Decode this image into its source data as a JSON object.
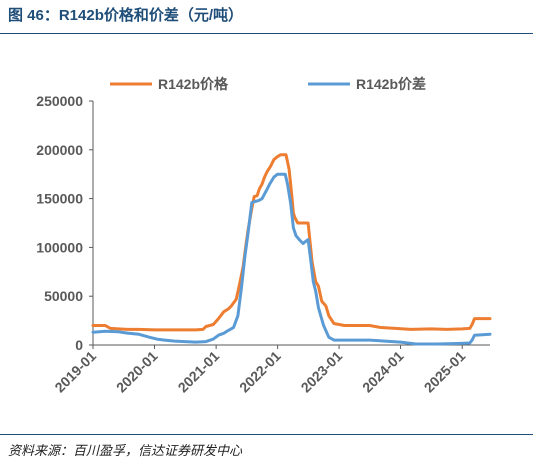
{
  "figure": {
    "title": "图 46：R142b价格和价差（元/吨）",
    "source": "资料来源：百川盈孚，信达证券研发中心"
  },
  "colors": {
    "price": "#ed7d31",
    "spread": "#5b9bd5",
    "header": "#1f4e79",
    "axis": "#595959",
    "tick_label": "#595959"
  },
  "chart_data": {
    "type": "line",
    "x_type": "date",
    "xlim": [
      "2019-01-01",
      "2025-06-15"
    ],
    "ylim": [
      0,
      250000
    ],
    "y_ticks": [
      0,
      50000,
      100000,
      150000,
      200000,
      250000
    ],
    "y_tick_labels": [
      "0",
      "50000",
      "100000",
      "150000",
      "200000",
      "250000"
    ],
    "x_ticks": [
      "2019-01-01",
      "2020-01-01",
      "2021-01-01",
      "2022-01-01",
      "2023-01-01",
      "2024-01-01",
      "2025-01-01"
    ],
    "x_tick_labels": [
      "2019-01",
      "2020-01",
      "2021-01",
      "2022-01",
      "2023-01",
      "2024-01",
      "2025-01"
    ],
    "grid": false,
    "legend_position": "top",
    "series": [
      {
        "name": "R142b价格",
        "color_key": "price",
        "points": [
          [
            "2019-01-01",
            20000
          ],
          [
            "2019-03-15",
            20000
          ],
          [
            "2019-04-15",
            17000
          ],
          [
            "2019-06-01",
            16500
          ],
          [
            "2019-08-01",
            16000
          ],
          [
            "2019-10-01",
            16000
          ],
          [
            "2020-01-01",
            15500
          ],
          [
            "2020-06-01",
            15500
          ],
          [
            "2020-09-01",
            15500
          ],
          [
            "2020-10-15",
            16000
          ],
          [
            "2020-11-01",
            19000
          ],
          [
            "2020-12-15",
            21000
          ],
          [
            "2021-01-15",
            27000
          ],
          [
            "2021-02-15",
            34000
          ],
          [
            "2021-03-15",
            37000
          ],
          [
            "2021-04-01",
            40000
          ],
          [
            "2021-05-01",
            47000
          ],
          [
            "2021-05-20",
            62000
          ],
          [
            "2021-06-10",
            80000
          ],
          [
            "2021-06-25",
            100000
          ],
          [
            "2021-07-10",
            118000
          ],
          [
            "2021-08-01",
            140000
          ],
          [
            "2021-08-15",
            152000
          ],
          [
            "2021-09-01",
            153000
          ],
          [
            "2021-09-15",
            160000
          ],
          [
            "2021-10-01",
            165000
          ],
          [
            "2021-10-15",
            172000
          ],
          [
            "2021-11-01",
            178000
          ],
          [
            "2021-11-20",
            183000
          ],
          [
            "2021-12-10",
            190000
          ],
          [
            "2022-01-01",
            193000
          ],
          [
            "2022-01-20",
            195000
          ],
          [
            "2022-02-20",
            195000
          ],
          [
            "2022-03-10",
            180000
          ],
          [
            "2022-03-25",
            155000
          ],
          [
            "2022-04-05",
            135000
          ],
          [
            "2022-04-15",
            130000
          ],
          [
            "2022-05-01",
            125000
          ],
          [
            "2022-06-01",
            125000
          ],
          [
            "2022-07-01",
            125000
          ],
          [
            "2022-07-10",
            110000
          ],
          [
            "2022-07-25",
            85000
          ],
          [
            "2022-08-15",
            65000
          ],
          [
            "2022-09-01",
            60000
          ],
          [
            "2022-09-20",
            45000
          ],
          [
            "2022-10-15",
            40000
          ],
          [
            "2022-11-01",
            30000
          ],
          [
            "2022-12-01",
            22000
          ],
          [
            "2023-02-01",
            20000
          ],
          [
            "2023-07-01",
            20000
          ],
          [
            "2023-09-01",
            18000
          ],
          [
            "2023-12-01",
            17000
          ],
          [
            "2024-03-01",
            16000
          ],
          [
            "2024-07-01",
            16500
          ],
          [
            "2024-10-01",
            16000
          ],
          [
            "2025-01-01",
            16500
          ],
          [
            "2025-02-15",
            17000
          ],
          [
            "2025-03-01",
            21000
          ],
          [
            "2025-03-15",
            27000
          ],
          [
            "2025-06-15",
            27000
          ]
        ]
      },
      {
        "name": "R142b价差",
        "color_key": "spread",
        "points": [
          [
            "2019-01-01",
            13000
          ],
          [
            "2019-03-15",
            14000
          ],
          [
            "2019-06-01",
            13500
          ],
          [
            "2019-08-01",
            12000
          ],
          [
            "2019-10-01",
            11000
          ],
          [
            "2019-12-01",
            8000
          ],
          [
            "2020-01-15",
            6000
          ],
          [
            "2020-03-01",
            5000
          ],
          [
            "2020-05-01",
            4000
          ],
          [
            "2020-07-01",
            3500
          ],
          [
            "2020-09-01",
            3000
          ],
          [
            "2020-11-01",
            3500
          ],
          [
            "2020-12-15",
            6000
          ],
          [
            "2021-01-15",
            10000
          ],
          [
            "2021-02-15",
            12000
          ],
          [
            "2021-03-15",
            15000
          ],
          [
            "2021-04-15",
            18000
          ],
          [
            "2021-05-10",
            30000
          ],
          [
            "2021-06-01",
            60000
          ],
          [
            "2021-06-20",
            90000
          ],
          [
            "2021-07-10",
            115000
          ],
          [
            "2021-08-01",
            146000
          ],
          [
            "2021-08-20",
            147000
          ],
          [
            "2021-09-10",
            148000
          ],
          [
            "2021-10-01",
            150000
          ],
          [
            "2021-11-01",
            160000
          ],
          [
            "2021-11-15",
            165000
          ],
          [
            "2021-12-10",
            172000
          ],
          [
            "2022-01-01",
            175000
          ],
          [
            "2022-02-15",
            175000
          ],
          [
            "2022-03-01",
            165000
          ],
          [
            "2022-03-20",
            145000
          ],
          [
            "2022-04-05",
            120000
          ],
          [
            "2022-04-20",
            112000
          ],
          [
            "2022-05-10",
            108000
          ],
          [
            "2022-06-01",
            104000
          ],
          [
            "2022-07-01",
            108000
          ],
          [
            "2022-07-15",
            90000
          ],
          [
            "2022-08-01",
            65000
          ],
          [
            "2022-08-15",
            55000
          ],
          [
            "2022-09-01",
            38000
          ],
          [
            "2022-10-01",
            20000
          ],
          [
            "2022-11-01",
            8000
          ],
          [
            "2022-12-01",
            5000
          ],
          [
            "2023-03-01",
            5000
          ],
          [
            "2023-07-01",
            5000
          ],
          [
            "2023-10-01",
            4000
          ],
          [
            "2024-01-01",
            3000
          ],
          [
            "2024-04-01",
            1000
          ],
          [
            "2024-08-01",
            1000
          ],
          [
            "2024-12-01",
            1500
          ],
          [
            "2025-02-15",
            2000
          ],
          [
            "2025-03-01",
            5000
          ],
          [
            "2025-03-15",
            10000
          ],
          [
            "2025-06-15",
            11000
          ]
        ]
      }
    ]
  }
}
